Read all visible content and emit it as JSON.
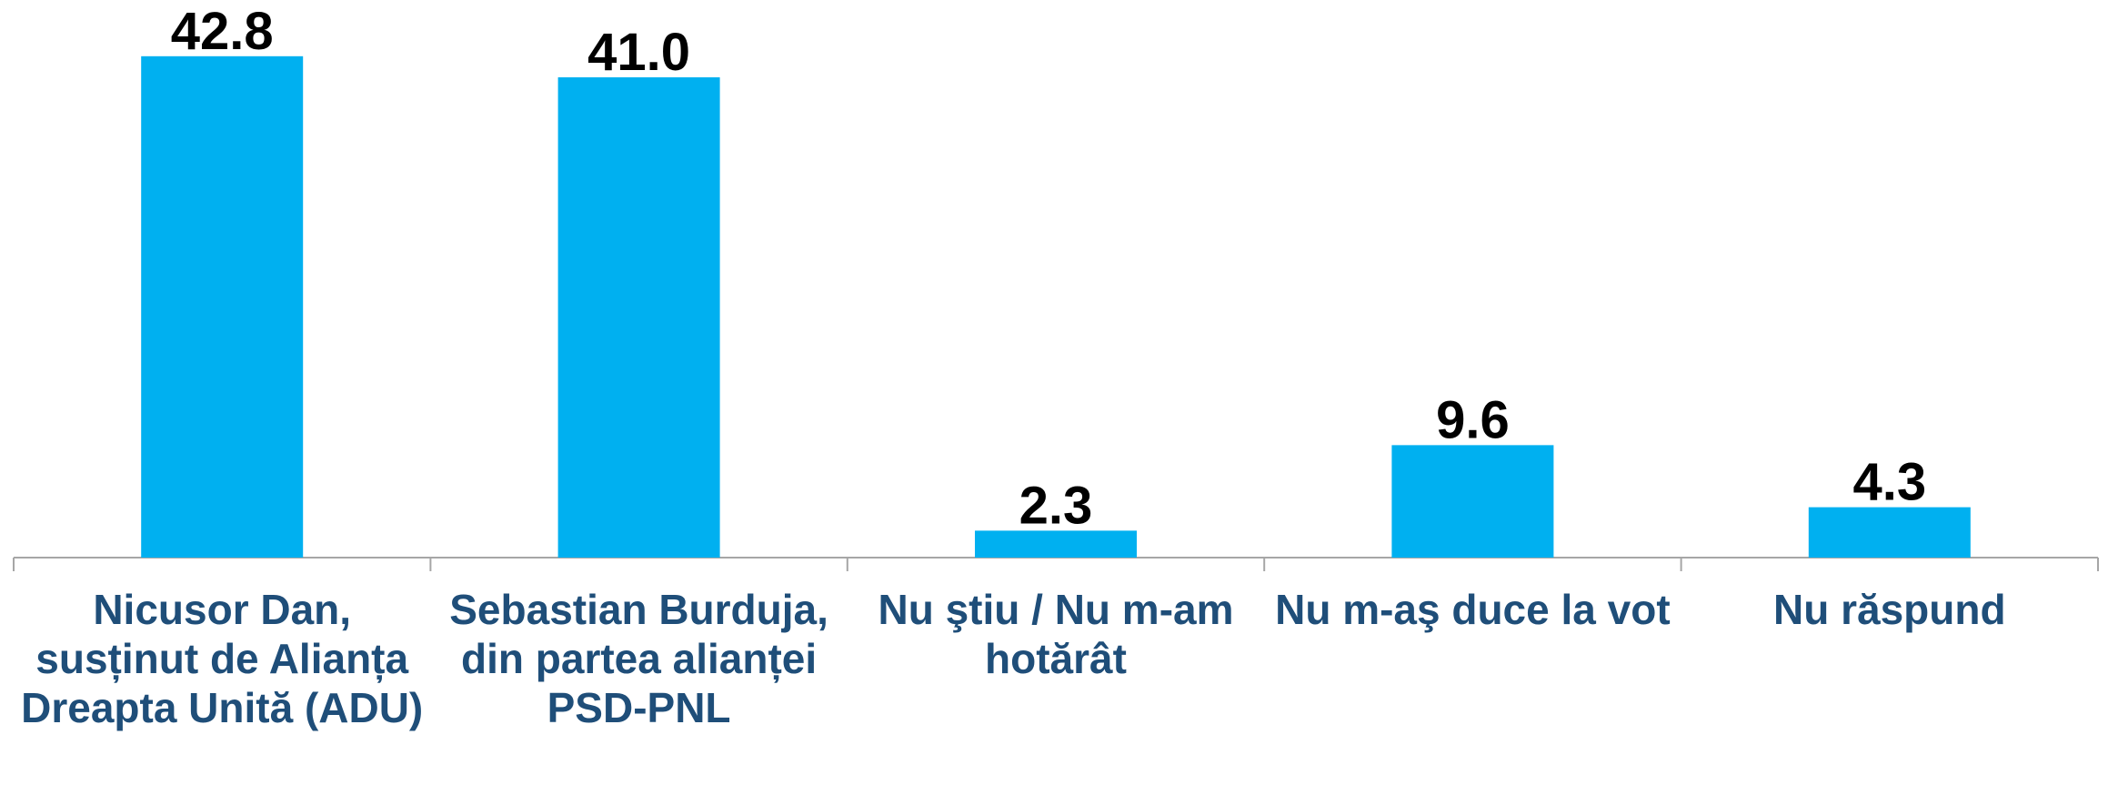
{
  "chart_data": {
    "type": "bar",
    "categories": [
      "Nicusor Dan, susținut de Alianța Dreapta Unită (ADU)",
      "Sebastian Burduja, din partea alianței PSD-PNL",
      "Nu ştiu / Nu m-am hotărât",
      "Nu m-aş duce la vot",
      "Nu răspund"
    ],
    "values": [
      42.8,
      41.0,
      2.3,
      9.6,
      4.3
    ],
    "value_labels": [
      "42.8",
      "41.0",
      "2.3",
      "9.6",
      "4.3"
    ],
    "color": "#00b0f0",
    "ylim": [
      0,
      47.6
    ]
  }
}
